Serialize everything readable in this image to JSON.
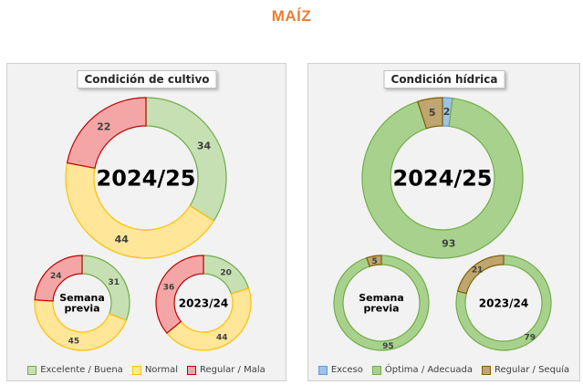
{
  "title": "MAÍZ",
  "chart_data": [
    {
      "type": "pie",
      "title": "Condición de cultivo",
      "legend": [
        {
          "name": "Excelente / Buena",
          "color": "#c6e0b4",
          "border": "#70ad47"
        },
        {
          "name": "Normal",
          "color": "#ffe699",
          "border": "#ffc000"
        },
        {
          "name": "Regular / Mala",
          "color": "#f4a6a6",
          "border": "#c00000"
        }
      ],
      "rings": [
        {
          "label": "2024/25",
          "values": [
            34,
            44,
            22
          ]
        },
        {
          "label": "Semana previa",
          "values": [
            31,
            45,
            24
          ]
        },
        {
          "label": "2023/24",
          "values": [
            20,
            44,
            36
          ]
        }
      ]
    },
    {
      "type": "pie",
      "title": "Condición hídrica",
      "legend": [
        {
          "name": "Exceso",
          "color": "#9dc3e6",
          "border": "#5b9bd5"
        },
        {
          "name": "Óptima / Adecuada",
          "color": "#a9d18e",
          "border": "#70ad47"
        },
        {
          "name": "Regular / Sequía",
          "color": "#bfa56f",
          "border": "#7f6000"
        }
      ],
      "rings": [
        {
          "label": "2024/25",
          "values": [
            2,
            93,
            5
          ]
        },
        {
          "label": "Semana previa",
          "values": [
            0,
            95,
            5
          ]
        },
        {
          "label": "2023/24",
          "values": [
            0,
            79,
            21
          ]
        }
      ]
    }
  ]
}
